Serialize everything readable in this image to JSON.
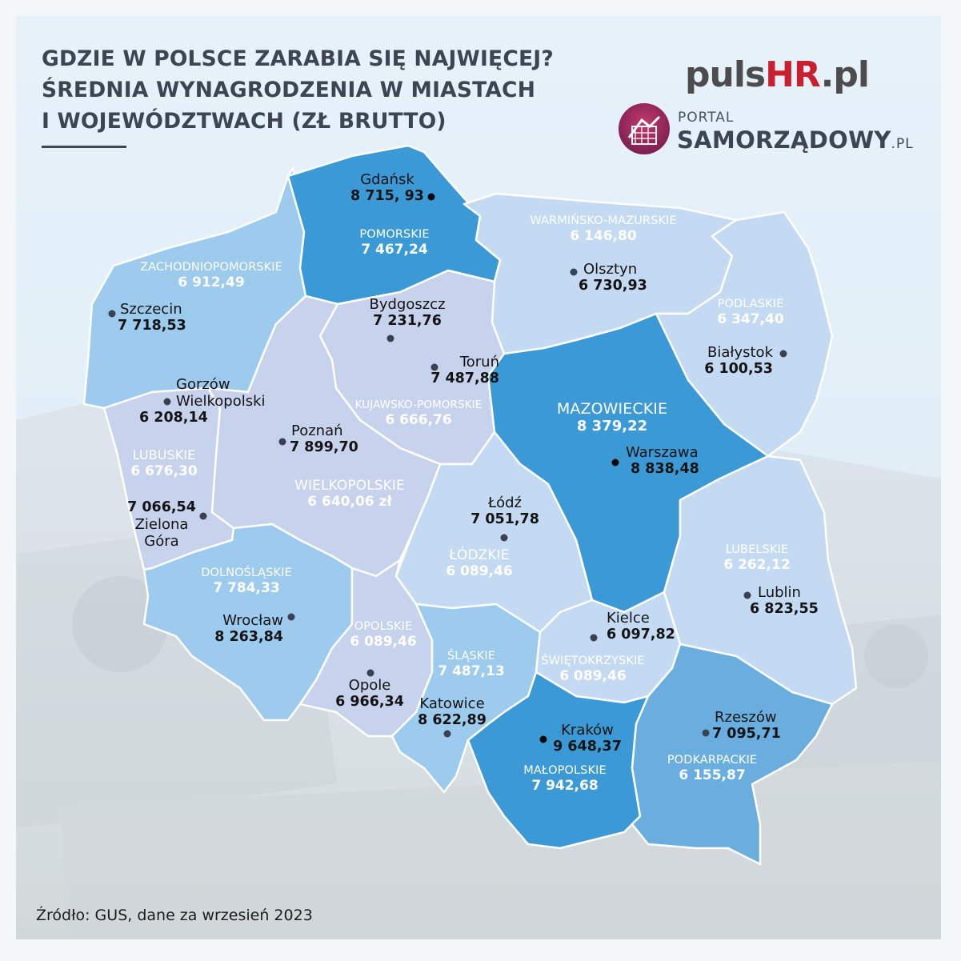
{
  "title": {
    "line1": "GDZIE W POLSCE ZARABIA SIĘ NAJWIĘCEJ?",
    "line2": "ŚREDNIA WYNAGRODZENIA W MIASTACH",
    "line3": "I WOJEWÓDZTWACH (ZŁ BRUTTO)"
  },
  "logos": {
    "pulshr_main": "puls",
    "pulshr_accent": "HR",
    "pulshr_tld": ".pl",
    "portal_line": "PORTAL",
    "samorzadowy_line": "SAMORZĄDOWY",
    "samorzadowy_tld": ".PL"
  },
  "colors": {
    "darkest": "#3b9ad6",
    "dark": "#6aaee0",
    "mid": "#9ccbee",
    "light": "#c3daf2",
    "lightest": "#c7d2ed",
    "border": "#ffffff",
    "title": "#3d4552",
    "brand_red": "#c8202e"
  },
  "voivodeships": {
    "zachodniopomorskie": {
      "name": "ZACHODNIOPOMORSKIE",
      "value": "6 912,49"
    },
    "pomorskie": {
      "name": "POMORSKIE",
      "value": "7 467,24"
    },
    "warminsko_mazurskie": {
      "name": "WARMIŃSKO-MAZURSKIE",
      "value": "6 146,80"
    },
    "podlaskie": {
      "name": "PODLASKIE",
      "value": "6 347,40"
    },
    "kujawsko_pomorskie": {
      "name": "KUJAWSKO-POMORSKIE",
      "value": "6 666,76"
    },
    "mazowieckie": {
      "name": "MAZOWIECKIE",
      "value": "8 379,22"
    },
    "lubuskie": {
      "name": "LUBUSKIE",
      "value": "6 676,30"
    },
    "wielkopolskie": {
      "name": "WIELKOPOLSKIE",
      "value": "6 640,06 zł"
    },
    "lodzkie": {
      "name": "ŁÓDZKIE",
      "value": "6 089,46"
    },
    "lubelskie": {
      "name": "LUBELSKIE",
      "value": "6 262,12"
    },
    "dolnoslaskie": {
      "name": "DOLNOŚLĄSKIE",
      "value": "7 784,33"
    },
    "opolskie": {
      "name": "OPOLSKIE",
      "value": "6 089,46"
    },
    "slaskie": {
      "name": "ŚLĄSKIE",
      "value": "7 487,13"
    },
    "swietokrzyskie": {
      "name": "ŚWIĘTOKRZYSKIE",
      "value": "6 089,46"
    },
    "malopolskie": {
      "name": "MAŁOPOLSKIE",
      "value": "7 942,68"
    },
    "podkarpackie": {
      "name": "PODKARPACKIE",
      "value": "6 155,87"
    }
  },
  "cities": {
    "gdansk": {
      "name": "Gdańsk",
      "value": "8 715, 93"
    },
    "szczecin": {
      "name": "Szczecin",
      "value": "7 718,53"
    },
    "olsztyn": {
      "name": "Olsztyn",
      "value": "6 730,93"
    },
    "bydgoszcz": {
      "name": "Bydgoszcz",
      "value": "7 231,76"
    },
    "torun": {
      "name": "Toruń",
      "value": "7 487,88"
    },
    "bialystok": {
      "name": "Białystok",
      "value": "6 100,53"
    },
    "gorzow": {
      "name_line1": "Gorzów",
      "name_line2": "Wielkopolski",
      "value": "6 208,14"
    },
    "poznan": {
      "name": "Poznań",
      "value": "7 899,70"
    },
    "warszawa": {
      "name": "Warszawa",
      "value": "8 838,48"
    },
    "zielona_gora": {
      "name_line1": "Zielona",
      "name_line2": "Góra",
      "value": "7 066,54"
    },
    "lodz": {
      "name": "Łódź",
      "value": "7 051,78"
    },
    "lublin": {
      "name": "Lublin",
      "value": "6 823,55"
    },
    "wroclaw": {
      "name": "Wrocław",
      "value": "8 263,84"
    },
    "kielce": {
      "name": "Kielce",
      "value": "6 097,82"
    },
    "opole": {
      "name": "Opole",
      "value": "6 966,34"
    },
    "katowice": {
      "name": "Katowice",
      "value": "8 622,89"
    },
    "krakow": {
      "name": "Kraków",
      "value": "9 648,37"
    },
    "rzeszow": {
      "name": "Rzeszów",
      "value": "7 095,71"
    }
  },
  "source": "Źródło: GUS, dane za wrzesień 2023"
}
